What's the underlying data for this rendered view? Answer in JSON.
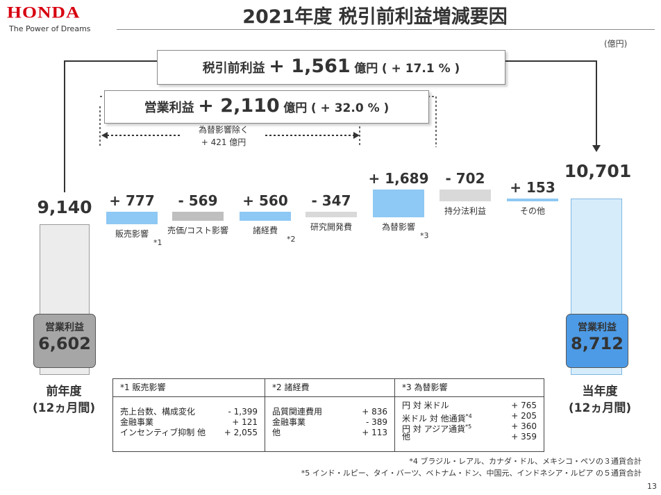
{
  "header": {
    "logo_text": "HONDA",
    "tagline": "The Power of Dreams",
    "title": "2021年度 税引前利益増減要因",
    "unit": "(億円)"
  },
  "summary": {
    "pretax_label": "税引前利益",
    "pretax_value": "+ 1,561",
    "pretax_unit": "億円",
    "pretax_pct": "( + 17.1 % )",
    "op_label": "営業利益",
    "op_value": "+ 2,110",
    "op_unit": "億円",
    "op_pct": "( + 32.0 % )",
    "fx_excl_label": "為替影響除く",
    "fx_excl_value": "+ 421 億円"
  },
  "chart_data": {
    "type": "bar",
    "subtype": "waterfall",
    "title": "2021年度 税引前利益増減要因",
    "unit": "億円",
    "start": {
      "name": "前年度 (12ヵ月間)",
      "value": 9140,
      "value_label": "9,140",
      "op_income_label": "営業利益",
      "op_income": 6602,
      "op_income_text": "6,602"
    },
    "steps": [
      {
        "name": "販売影響",
        "note": "*1",
        "value": 777,
        "value_label": "+ 777",
        "color": "#8ec8f4"
      },
      {
        "name": "売価/コスト影響",
        "note": "",
        "value": -569,
        "value_label": "- 569",
        "color": "#bfbfbf"
      },
      {
        "name": "諸経費",
        "note": "*2",
        "value": 560,
        "value_label": "+ 560",
        "color": "#8ec8f4"
      },
      {
        "name": "研究開発費",
        "note": "",
        "value": -347,
        "value_label": "- 347",
        "color": "#d9d9d9"
      },
      {
        "name": "為替影響",
        "note": "*3",
        "value": 1689,
        "value_label": "+ 1,689",
        "color": "#8ec8f4"
      },
      {
        "name": "持分法利益",
        "note": "",
        "value": -702,
        "value_label": "- 702",
        "color": "#d9d9d9"
      },
      {
        "name": "その他",
        "note": "",
        "value": 153,
        "value_label": "+ 153",
        "color": "#8ec8f4"
      }
    ],
    "end": {
      "name": "当年度 (12ヵ月間)",
      "value": 10701,
      "value_label": "10,701",
      "op_income_label": "営業利益",
      "op_income": 8712,
      "op_income_text": "8,712"
    }
  },
  "labels": {
    "prev_year_line1": "前年度",
    "prev_year_line2": "(12ヵ月間)",
    "curr_year_line1": "当年度",
    "curr_year_line2": "(12ヵ月間)"
  },
  "notes_table": [
    {
      "header": "*1 販売影響",
      "rows": [
        {
          "label": "売上台数、構成変化",
          "value": "- 1,399"
        },
        {
          "label": "金融事業",
          "value": "+ 121"
        },
        {
          "label": "インセンティブ抑制 他",
          "value": "+ 2,055"
        }
      ]
    },
    {
      "header": "*2 諸経費",
      "rows": [
        {
          "label": "品質関連費用",
          "value": "+ 836"
        },
        {
          "label": "金融事業",
          "value": "- 389"
        },
        {
          "label": "他",
          "value": "+ 113"
        }
      ]
    },
    {
      "header": "*3 為替影響",
      "rows": [
        {
          "label": "円 対 米ドル",
          "sup": "",
          "value": "+ 765"
        },
        {
          "label": "米ドル 対 他通貨",
          "sup": "*4",
          "value": "+ 205"
        },
        {
          "label": "円 対 アジア通貨",
          "sup": "*5",
          "value": "+ 360"
        },
        {
          "label": "他",
          "sup": "",
          "value": "+ 359"
        }
      ]
    }
  ],
  "footnotes": [
    "*4 ブラジル・レアル、カナダ・ドル、メキシコ・ペソの３通貨合計",
    "*5 インド・ルピー、タイ・バーツ、ベトナム・ドン、中国元、インドネシア・ルピア の５通貨合計"
  ],
  "page_number": "13",
  "colors": {
    "brand": "#d7000f",
    "increase": "#8ec8f4",
    "decrease_dark": "#bfbfbf",
    "decrease_light": "#d9d9d9",
    "prev_bar": "#ececec",
    "curr_bar": "#d6ecfb",
    "op_prev": "#a6a6a6",
    "op_curr": "#4d9be6"
  }
}
